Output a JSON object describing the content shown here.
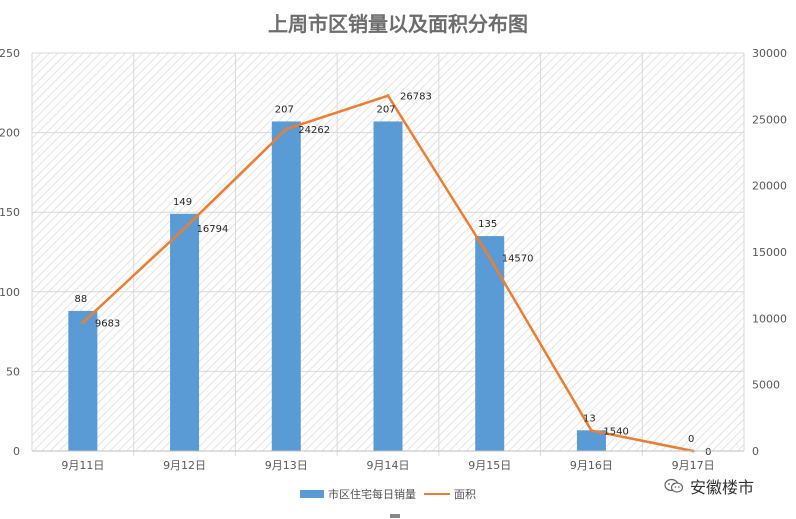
{
  "chart_data": {
    "type": "bar",
    "title": "上周市区销量以及面积分布图",
    "categories": [
      "9月11日",
      "9月12日",
      "9月13日",
      "9月14日",
      "9月15日",
      "9月16日",
      "9月17日"
    ],
    "series": [
      {
        "name": "市区住宅每日销量",
        "type": "bar",
        "axis": "left",
        "color": "#5b9bd5",
        "values": [
          88,
          149,
          207,
          207,
          135,
          13,
          0
        ],
        "labels": [
          "88",
          "149",
          "207",
          "207",
          "135",
          "13",
          "0"
        ]
      },
      {
        "name": "面积",
        "type": "line",
        "axis": "right",
        "color": "#ed7d31",
        "values": [
          9683,
          16794,
          24262,
          26783,
          14570,
          1540,
          0
        ],
        "labels": [
          "9683",
          "16794",
          "24262",
          "26783",
          "14570",
          "1540",
          "0"
        ]
      }
    ],
    "ylim_left": [
      0,
      250
    ],
    "yticks_left": [
      "0",
      "50",
      "100",
      "150",
      "200",
      "250"
    ],
    "ylim_right": [
      0,
      30000
    ],
    "yticks_right": [
      "0",
      "5000",
      "10000",
      "15000",
      "20000",
      "25000",
      "30000"
    ],
    "grid": true,
    "legend": "bottom"
  },
  "watermark": {
    "text": "安徽楼市",
    "icon": "wechat-icon"
  }
}
